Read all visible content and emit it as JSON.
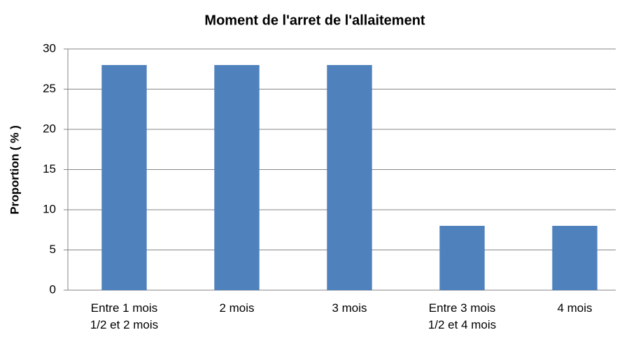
{
  "chart_data": {
    "type": "bar",
    "title": "Moment de l'arret de l'allaitement",
    "ylabel": "Proportion ( % )",
    "categories": [
      "Entre 1 mois\n1/2 et 2 mois",
      "2 mois",
      "3 mois",
      "Entre 3 mois\n1/2 et 4 mois",
      "4 mois"
    ],
    "values": [
      28,
      28,
      28,
      8,
      8
    ],
    "color": "#4f81bd",
    "ylim": [
      0,
      30
    ],
    "yticks": [
      0,
      5,
      10,
      15,
      20,
      25,
      30
    ],
    "grid": true
  }
}
